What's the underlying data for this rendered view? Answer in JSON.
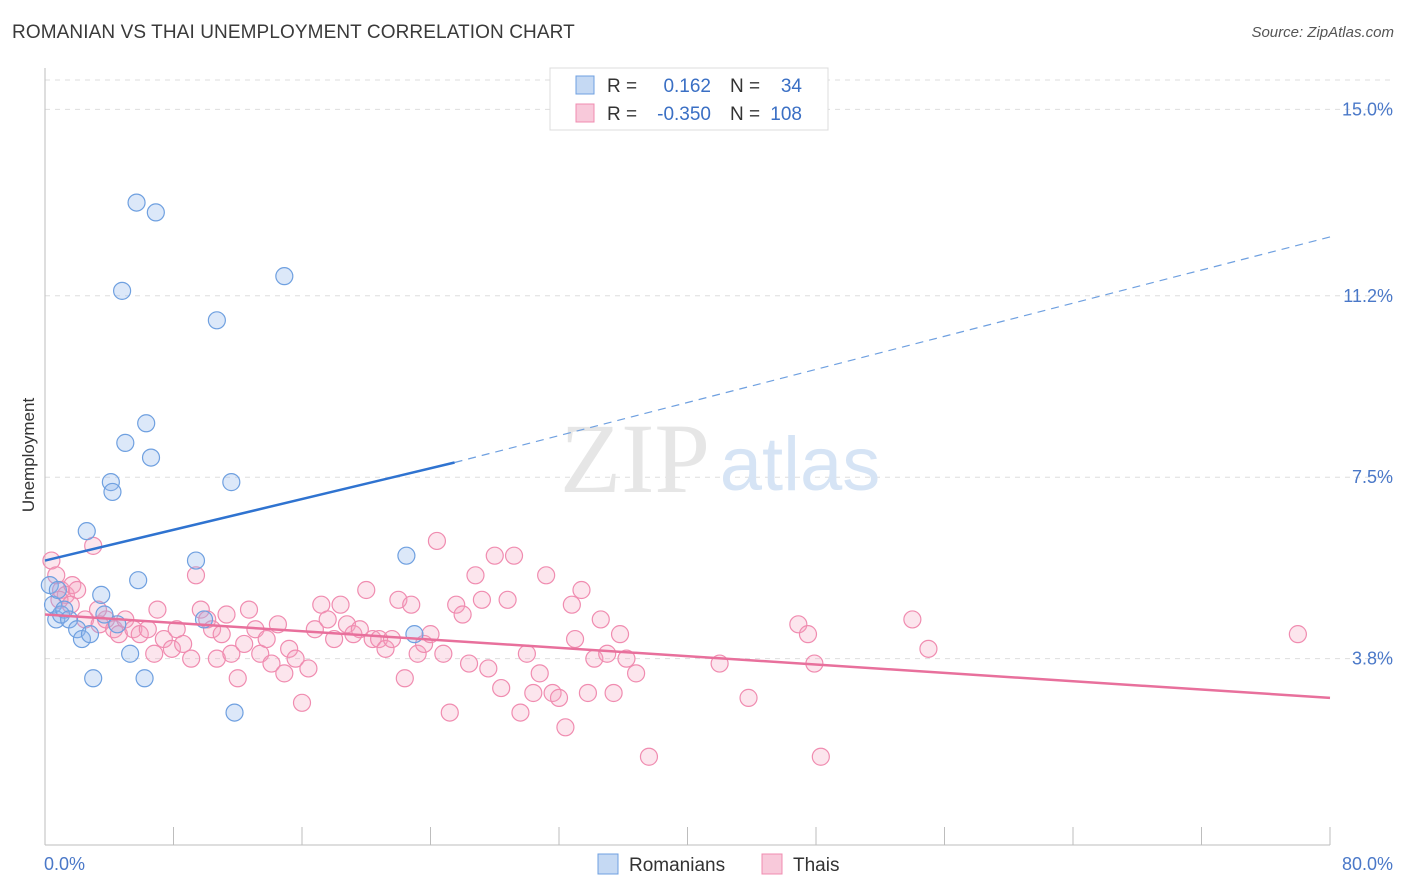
{
  "title": "ROMANIAN VS THAI UNEMPLOYMENT CORRELATION CHART",
  "source": "Source: ZipAtlas.com",
  "watermark": {
    "zip": "ZIP",
    "atlas": "atlas"
  },
  "legend": {
    "rows": [
      {
        "r_label": "R =",
        "r_value": "0.162",
        "n_label": "N =",
        "n_value": "34",
        "color": "#6fa0e0"
      },
      {
        "r_label": "R =",
        "r_value": "-0.350",
        "n_label": "N =",
        "n_value": "108",
        "color": "#f08cb0"
      }
    ]
  },
  "bottom_legend": {
    "romanians": "Romanians",
    "thais": "Thais"
  },
  "chart_data": {
    "type": "scatter",
    "ylabel": "Unemployment",
    "xlim": [
      0,
      80
    ],
    "ylim": [
      0,
      15.6
    ],
    "x_tick_labels": {
      "left": "0.0%",
      "right": "80.0%"
    },
    "y_ticks": [
      {
        "value": 15.0,
        "label": "15.0%"
      },
      {
        "value": 11.2,
        "label": "11.2%"
      },
      {
        "value": 7.5,
        "label": "7.5%"
      },
      {
        "value": 3.8,
        "label": "3.8%"
      }
    ],
    "grid": true,
    "series": [
      {
        "name": "Romanians",
        "color": "#6fa0e0",
        "trend": {
          "x0": 0,
          "y0": 5.8,
          "x1": 25.5,
          "y1": 7.8,
          "dash_x1": 80,
          "dash_y1": 12.4
        },
        "points": [
          [
            0.3,
            5.3
          ],
          [
            0.5,
            4.9
          ],
          [
            0.7,
            4.6
          ],
          [
            0.8,
            5.2
          ],
          [
            1.0,
            4.7
          ],
          [
            1.2,
            4.8
          ],
          [
            1.5,
            4.6
          ],
          [
            2.0,
            4.4
          ],
          [
            2.3,
            4.2
          ],
          [
            2.8,
            4.3
          ],
          [
            2.6,
            6.4
          ],
          [
            3.0,
            3.4
          ],
          [
            3.5,
            5.1
          ],
          [
            3.7,
            4.7
          ],
          [
            4.1,
            7.4
          ],
          [
            4.2,
            7.2
          ],
          [
            4.5,
            4.5
          ],
          [
            4.8,
            11.3
          ],
          [
            5.0,
            8.2
          ],
          [
            5.3,
            3.9
          ],
          [
            5.8,
            5.4
          ],
          [
            6.2,
            3.4
          ],
          [
            6.3,
            8.6
          ],
          [
            6.6,
            7.9
          ],
          [
            5.7,
            13.1
          ],
          [
            6.9,
            12.9
          ],
          [
            9.4,
            5.8
          ],
          [
            9.9,
            4.6
          ],
          [
            10.7,
            10.7
          ],
          [
            11.6,
            7.4
          ],
          [
            11.8,
            2.7
          ],
          [
            14.9,
            11.6
          ],
          [
            22.5,
            5.9
          ],
          [
            23.0,
            4.3
          ]
        ]
      },
      {
        "name": "Thais",
        "color": "#f08cb0",
        "trend": {
          "x0": 0,
          "y0": 4.7,
          "x1": 80,
          "y1": 3.0
        },
        "points": [
          [
            0.4,
            5.8
          ],
          [
            0.7,
            5.5
          ],
          [
            1.0,
            5.2
          ],
          [
            1.3,
            5.1
          ],
          [
            1.7,
            5.3
          ],
          [
            2.0,
            5.2
          ],
          [
            2.5,
            4.6
          ],
          [
            3.0,
            6.1
          ],
          [
            3.4,
            4.5
          ],
          [
            3.8,
            4.6
          ],
          [
            4.3,
            4.4
          ],
          [
            4.6,
            4.3
          ],
          [
            5.0,
            4.6
          ],
          [
            5.5,
            4.4
          ],
          [
            5.9,
            4.3
          ],
          [
            6.4,
            4.4
          ],
          [
            6.8,
            3.9
          ],
          [
            7.0,
            4.8
          ],
          [
            7.4,
            4.2
          ],
          [
            7.9,
            4.0
          ],
          [
            8.2,
            4.4
          ],
          [
            8.6,
            4.1
          ],
          [
            9.1,
            3.8
          ],
          [
            9.4,
            5.5
          ],
          [
            9.7,
            4.8
          ],
          [
            10.1,
            4.6
          ],
          [
            10.4,
            4.4
          ],
          [
            10.7,
            3.8
          ],
          [
            11.0,
            4.3
          ],
          [
            11.3,
            4.7
          ],
          [
            11.6,
            3.9
          ],
          [
            12.0,
            3.4
          ],
          [
            12.4,
            4.1
          ],
          [
            12.7,
            4.8
          ],
          [
            13.1,
            4.4
          ],
          [
            13.4,
            3.9
          ],
          [
            13.8,
            4.2
          ],
          [
            14.1,
            3.7
          ],
          [
            14.5,
            4.5
          ],
          [
            14.9,
            3.5
          ],
          [
            15.2,
            4.0
          ],
          [
            15.6,
            3.8
          ],
          [
            16.0,
            2.9
          ],
          [
            16.4,
            3.6
          ],
          [
            16.8,
            4.4
          ],
          [
            17.2,
            4.9
          ],
          [
            17.6,
            4.6
          ],
          [
            18.0,
            4.2
          ],
          [
            18.4,
            4.9
          ],
          [
            18.8,
            4.5
          ],
          [
            19.2,
            4.3
          ],
          [
            19.6,
            4.4
          ],
          [
            20.0,
            5.2
          ],
          [
            20.4,
            4.2
          ],
          [
            20.8,
            4.2
          ],
          [
            21.2,
            4.0
          ],
          [
            21.6,
            4.2
          ],
          [
            22.0,
            5.0
          ],
          [
            22.4,
            3.4
          ],
          [
            22.8,
            4.9
          ],
          [
            23.2,
            3.9
          ],
          [
            23.6,
            4.1
          ],
          [
            24.0,
            4.3
          ],
          [
            24.4,
            6.2
          ],
          [
            24.8,
            3.9
          ],
          [
            25.2,
            2.7
          ],
          [
            25.6,
            4.9
          ],
          [
            26.0,
            4.7
          ],
          [
            26.4,
            3.7
          ],
          [
            26.8,
            5.5
          ],
          [
            27.2,
            5.0
          ],
          [
            27.6,
            3.6
          ],
          [
            28.0,
            5.9
          ],
          [
            28.4,
            3.2
          ],
          [
            28.8,
            5.0
          ],
          [
            29.2,
            5.9
          ],
          [
            29.6,
            2.7
          ],
          [
            30.0,
            3.9
          ],
          [
            30.4,
            3.1
          ],
          [
            30.8,
            3.5
          ],
          [
            31.2,
            5.5
          ],
          [
            31.6,
            3.1
          ],
          [
            32.0,
            3.0
          ],
          [
            32.4,
            2.4
          ],
          [
            32.8,
            4.9
          ],
          [
            33.0,
            4.2
          ],
          [
            33.4,
            5.2
          ],
          [
            33.8,
            3.1
          ],
          [
            34.2,
            3.8
          ],
          [
            34.6,
            4.6
          ],
          [
            35.0,
            3.9
          ],
          [
            35.4,
            3.1
          ],
          [
            35.8,
            4.3
          ],
          [
            36.2,
            3.8
          ],
          [
            36.8,
            3.5
          ],
          [
            37.6,
            1.8
          ],
          [
            42.0,
            3.7
          ],
          [
            43.8,
            3.0
          ],
          [
            46.9,
            4.5
          ],
          [
            47.5,
            4.3
          ],
          [
            47.9,
            3.7
          ],
          [
            48.3,
            1.8
          ],
          [
            54.0,
            4.6
          ],
          [
            55.0,
            4.0
          ],
          [
            78.0,
            4.3
          ],
          [
            0.9,
            5.0
          ],
          [
            1.6,
            4.9
          ],
          [
            3.3,
            4.8
          ]
        ]
      }
    ]
  }
}
